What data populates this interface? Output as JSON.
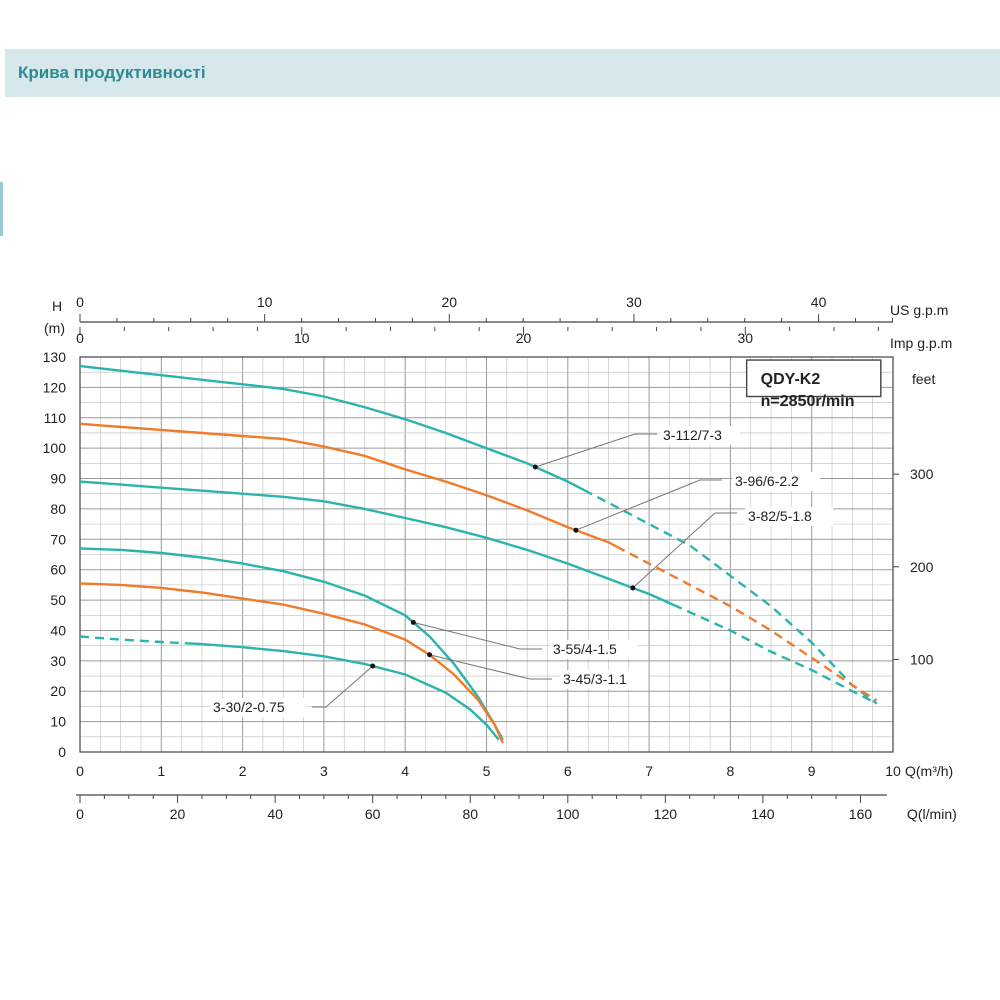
{
  "header": {
    "title": "Крива продуктивності"
  },
  "chart_data": {
    "type": "line",
    "model_box": {
      "line1": "QDY-K2",
      "line2": "n=2850r/min"
    },
    "axes": {
      "left": {
        "label_line1": "H",
        "label_line2": "(m)",
        "range": [
          0,
          130
        ],
        "ticks": [
          0,
          10,
          20,
          30,
          40,
          50,
          60,
          70,
          80,
          90,
          100,
          110,
          120,
          130
        ]
      },
      "right": {
        "label": "feet",
        "ticks": [
          100,
          200,
          300
        ]
      },
      "bottom_m3h": {
        "label": "Q(m³/h)",
        "range": [
          0,
          10
        ],
        "ticks": [
          0,
          1,
          2,
          3,
          4,
          5,
          6,
          7,
          8,
          9,
          10
        ]
      },
      "bottom_lmin": {
        "label": "Q(l/min)",
        "ticks": [
          0,
          20,
          40,
          60,
          80,
          100,
          120,
          140,
          160
        ]
      },
      "top_us": {
        "label": "US g.p.m",
        "ticks": [
          0,
          10,
          20,
          30,
          40
        ]
      },
      "top_imp": {
        "label": "Imp g.p.m",
        "ticks": [
          0,
          10,
          20,
          30
        ]
      }
    },
    "grid": true,
    "colors": {
      "teal": "#2bb3ae",
      "orange": "#f07b2b",
      "grid": "#bdbdbd",
      "axis": "#444444",
      "leader": "#777777"
    },
    "series": [
      {
        "name": "3-112/7-3",
        "color": "teal",
        "x": [
          0,
          0.5,
          1,
          1.5,
          2,
          2.5,
          3,
          3.5,
          4,
          4.5,
          5,
          5.5,
          6,
          6.5,
          7,
          7.5,
          8,
          8.5,
          9,
          9.5,
          9.8
        ],
        "y": [
          127,
          125.5,
          124,
          122.5,
          121,
          119.5,
          117,
          113.5,
          109.5,
          105,
          100,
          95,
          89,
          82,
          75,
          68,
          58,
          48,
          36,
          22,
          16
        ],
        "dashed_from": 6.2,
        "marker": 5.6
      },
      {
        "name": "3-96/6-2.2",
        "color": "orange",
        "x": [
          0,
          0.5,
          1,
          1.5,
          2,
          2.5,
          3,
          3.5,
          4,
          4.5,
          5,
          5.5,
          6,
          6.5,
          7,
          7.5,
          8,
          8.5,
          9,
          9.5,
          9.8
        ],
        "y": [
          108,
          107,
          106,
          105,
          104,
          103,
          100.5,
          97.5,
          93,
          89,
          84.5,
          79.5,
          74,
          69,
          62,
          55,
          48,
          40,
          31,
          22,
          17
        ],
        "dashed_from": 6.6,
        "marker": 6.1
      },
      {
        "name": "3-82/5-1.8",
        "color": "teal",
        "x": [
          0,
          0.5,
          1,
          1.5,
          2,
          2.5,
          3,
          3.5,
          4,
          4.5,
          5,
          5.5,
          6,
          6.5,
          7,
          7.5,
          8,
          8.5,
          9,
          9.5,
          9.8
        ],
        "y": [
          89,
          88,
          87,
          86,
          85,
          84,
          82.5,
          80,
          77,
          74,
          70.5,
          66.5,
          62,
          57,
          52,
          46,
          40,
          33,
          27,
          20,
          16
        ],
        "dashed_from": 7.3,
        "marker": 6.8
      },
      {
        "name": "3-55/4-1.5",
        "color": "teal",
        "x": [
          0,
          0.5,
          1,
          1.5,
          2,
          2.5,
          3,
          3.5,
          4,
          4.3,
          4.6,
          4.9,
          5.1,
          5.2
        ],
        "y": [
          67,
          66.5,
          65.5,
          64,
          62,
          59.5,
          56,
          51.5,
          45,
          38,
          29,
          18,
          9,
          4
        ],
        "marker": 4.1
      },
      {
        "name": "3-45/3-1.1",
        "color": "orange",
        "x": [
          0,
          0.5,
          1,
          1.5,
          2,
          2.5,
          3,
          3.5,
          4,
          4.3,
          4.6,
          4.9,
          5.1,
          5.2
        ],
        "y": [
          55.5,
          55,
          54,
          52.5,
          50.5,
          48.5,
          45.5,
          42,
          37,
          32,
          25.5,
          17,
          9,
          3
        ],
        "marker": 4.3
      },
      {
        "name": "3-30/2-0.75",
        "color": "teal",
        "x": [
          0,
          0.5,
          1,
          1.5,
          2,
          2.5,
          3,
          3.5,
          4,
          4.5,
          4.8,
          5.0,
          5.15
        ],
        "y": [
          38,
          37,
          36.2,
          35.5,
          34.5,
          33.2,
          31.5,
          29,
          25.5,
          19.5,
          14,
          9,
          4
        ],
        "dashed_until": 1.3,
        "marker": 3.6
      }
    ]
  }
}
